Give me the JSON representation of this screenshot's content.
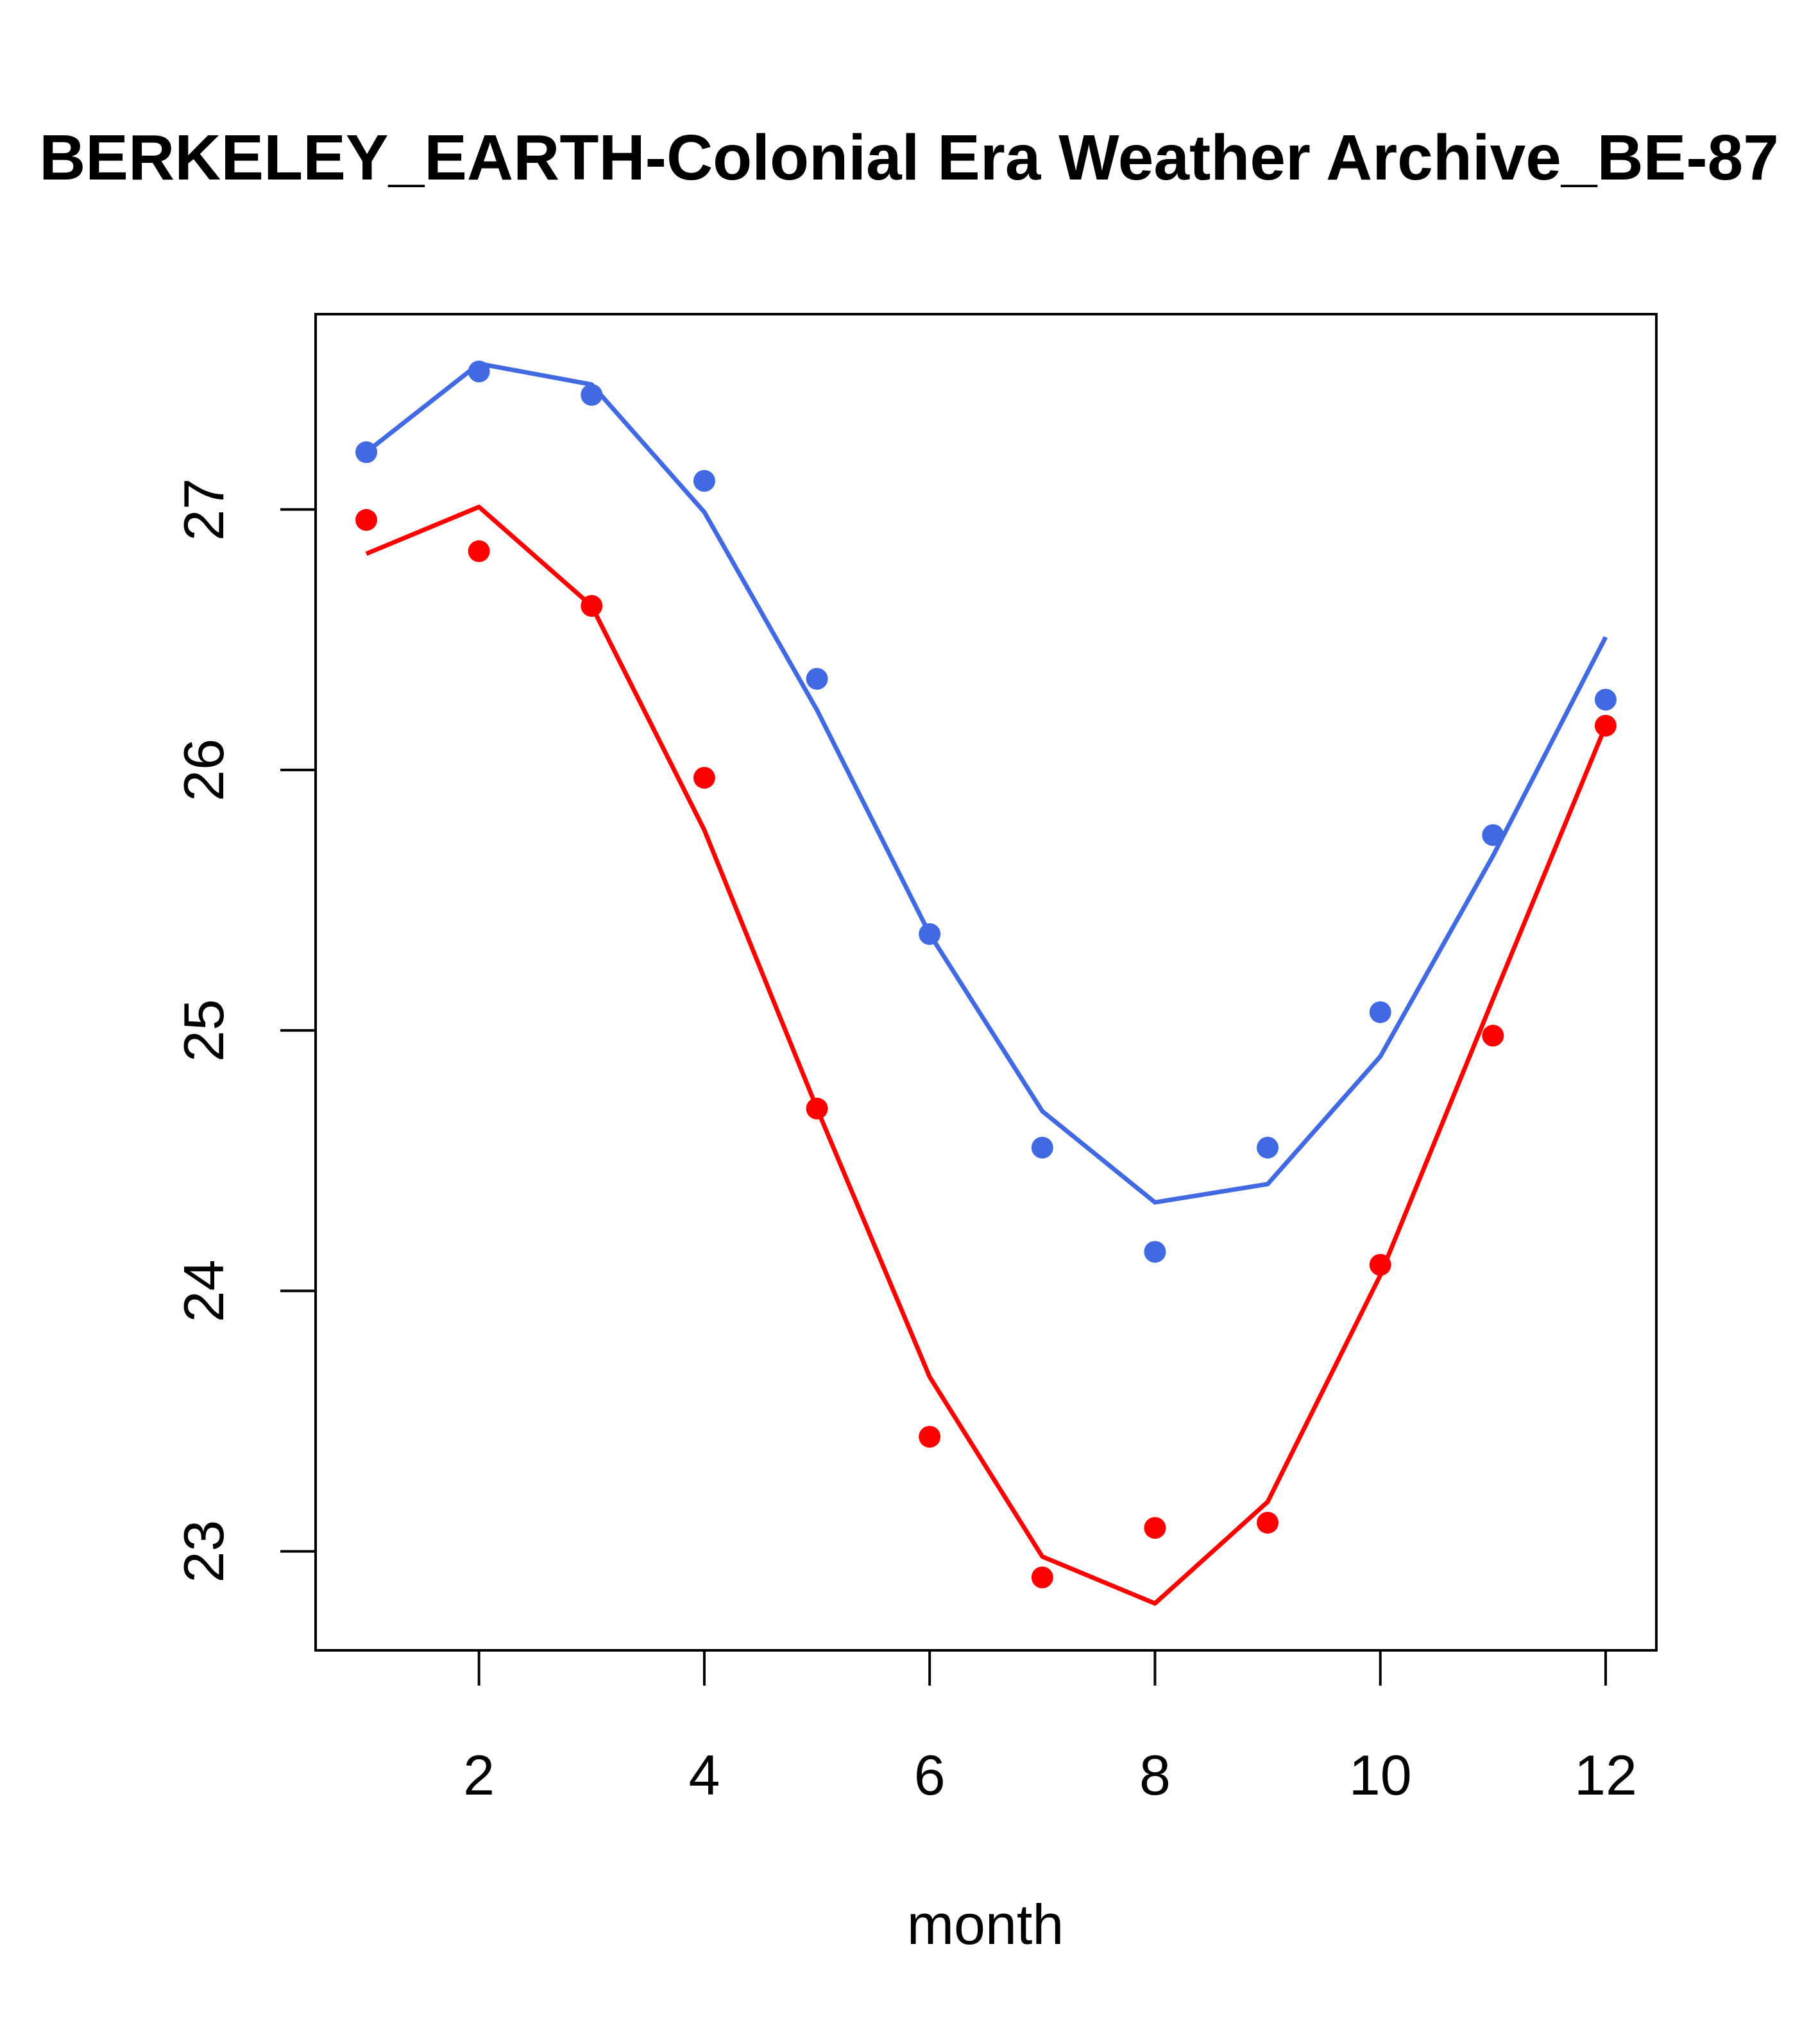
{
  "chart_data": {
    "type": "line",
    "title": "BERKELEY_EARTH-Colonial Era Weather Archive_BE-87",
    "xlabel": "month",
    "ylabel": "",
    "xlim": [
      0.55,
      12.45
    ],
    "ylim": [
      22.62,
      27.75
    ],
    "x_ticks": [
      2,
      4,
      6,
      8,
      10,
      12
    ],
    "y_ticks": [
      23,
      24,
      25,
      26,
      27
    ],
    "grid": false,
    "legend": "none",
    "x": [
      1,
      2,
      3,
      4,
      5,
      6,
      7,
      8,
      9,
      10,
      11,
      12
    ],
    "series": [
      {
        "color": "#4169e1",
        "points": [
          27.22,
          27.53,
          27.44,
          27.11,
          26.35,
          25.37,
          24.55,
          24.15,
          24.55,
          25.07,
          25.75,
          26.27
        ],
        "line": [
          27.22,
          27.56,
          27.48,
          26.99,
          26.23,
          25.37,
          24.69,
          24.34,
          24.41,
          24.9,
          25.67,
          26.51
        ]
      },
      {
        "color": "#ff0000",
        "points": [
          26.96,
          26.84,
          26.63,
          25.97,
          24.7,
          23.44,
          22.9,
          23.09,
          23.11,
          24.1,
          24.98,
          26.17
        ],
        "line": [
          26.83,
          27.01,
          26.63,
          25.77,
          24.7,
          23.67,
          22.98,
          22.8,
          23.19,
          24.06,
          25.12,
          26.17
        ]
      }
    ]
  }
}
